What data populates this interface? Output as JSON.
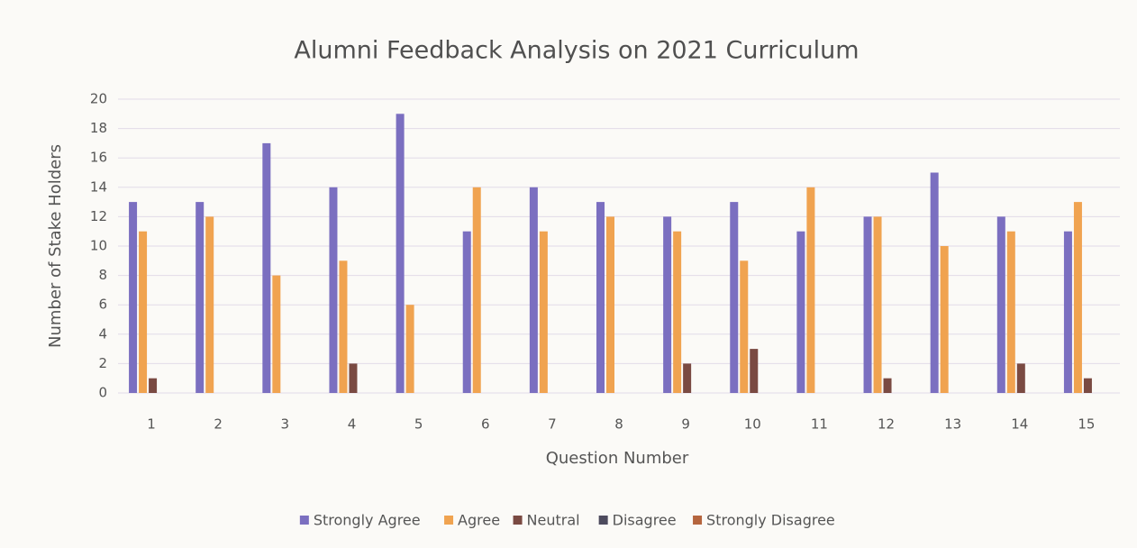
{
  "chart_data": {
    "type": "bar",
    "title": "Alumni Feedback Analysis on 2021 Curriculum",
    "x_label": "Question Number",
    "y_label": "Number of Stake Holders",
    "categories": [
      "1",
      "2",
      "3",
      "4",
      "5",
      "6",
      "7",
      "8",
      "9",
      "10",
      "11",
      "12",
      "13",
      "14",
      "15"
    ],
    "series": [
      {
        "name": "Strongly Agree",
        "color": "#7b6fc0",
        "values": [
          13,
          13,
          17,
          14,
          19,
          11,
          14,
          13,
          12,
          13,
          11,
          12,
          15,
          12,
          11
        ]
      },
      {
        "name": "Agree",
        "color": "#f0a350",
        "values": [
          11,
          12,
          8,
          9,
          6,
          14,
          11,
          12,
          11,
          9,
          14,
          12,
          10,
          11,
          13
        ]
      },
      {
        "name": "Neutral",
        "color": "#7a4a42",
        "values": [
          1,
          0,
          0,
          2,
          0,
          0,
          0,
          0,
          2,
          3,
          0,
          1,
          0,
          2,
          1
        ]
      },
      {
        "name": "Disagree",
        "color": "#4d4b5e",
        "values": [
          0,
          0,
          0,
          0,
          0,
          0,
          0,
          0,
          0,
          0,
          0,
          0,
          0,
          0,
          0
        ]
      },
      {
        "name": "Strongly Disagree",
        "color": "#b5653e",
        "values": [
          0,
          0,
          0,
          0,
          0,
          0,
          0,
          0,
          0,
          0,
          0,
          0,
          0,
          0,
          0
        ]
      }
    ],
    "ylim": [
      0,
      20
    ],
    "yticks": [
      0,
      2,
      4,
      6,
      8,
      10,
      12,
      14,
      16,
      18,
      20
    ],
    "grid": true,
    "legend": "bottom"
  }
}
